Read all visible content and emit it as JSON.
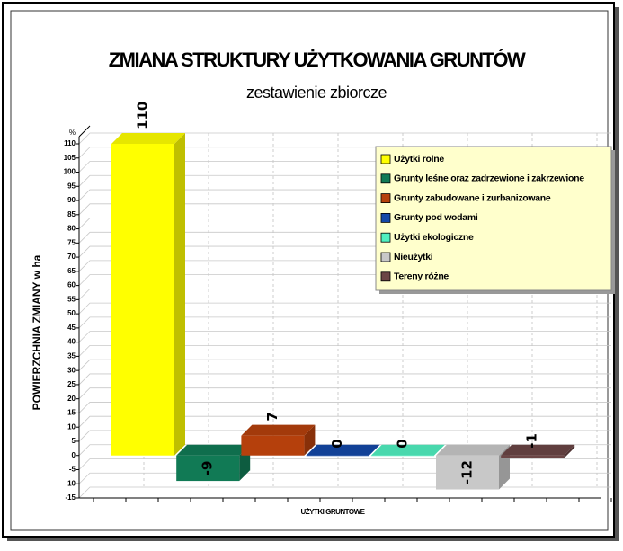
{
  "chart_data": {
    "type": "bar",
    "title": "ZMIANA STRUKTURY UŻYTKOWANIA GRUNTÓW",
    "subtitle": "zestawienie zbiorcze",
    "ylabel": "POWIERZCHNIA ZMIANY w ha",
    "xlabel": "UŻYTKI GRUNTOWE",
    "y_unit": "%",
    "categories": [
      "UŻYTKI GRUNTOWE"
    ],
    "series": [
      {
        "name": "Użytki rolne",
        "color": "#ffff00",
        "values": [
          110
        ]
      },
      {
        "name": "Grunty leśne oraz zadrzewione i zakrzewione",
        "color": "#117a55",
        "values": [
          -9
        ]
      },
      {
        "name": "Grunty zabudowane i zurbanizowane",
        "color": "#b5400c",
        "values": [
          7
        ]
      },
      {
        "name": "Grunty pod wodami",
        "color": "#1448a8",
        "values": [
          0
        ]
      },
      {
        "name": "Użytki ekologiczne",
        "color": "#50f0c0",
        "values": [
          0
        ]
      },
      {
        "name": "Nieużytki",
        "color": "#c8c8c8",
        "values": [
          -12
        ]
      },
      {
        "name": "Tereny różne",
        "color": "#6b4545",
        "values": [
          -1
        ]
      }
    ],
    "ylim": [
      -15,
      110
    ],
    "yticks": [
      -15,
      -10,
      -5,
      0,
      5,
      10,
      15,
      20,
      25,
      30,
      35,
      40,
      45,
      50,
      55,
      60,
      65,
      70,
      75,
      80,
      85,
      90,
      95,
      100,
      105,
      110
    ],
    "grid": true,
    "legend": "top-right"
  }
}
